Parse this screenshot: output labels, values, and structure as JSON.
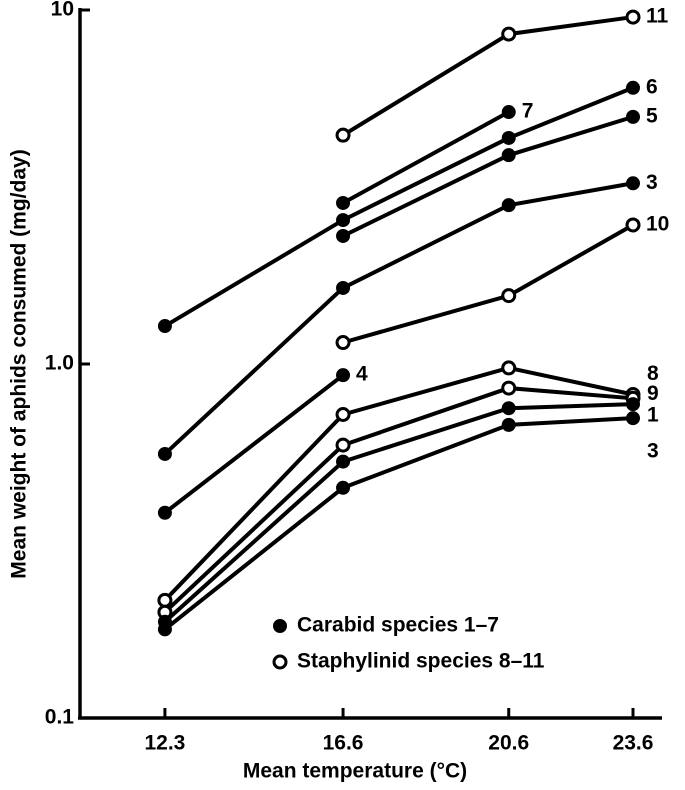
{
  "chart_data": {
    "type": "line",
    "x_label": "Mean temperature (°C)",
    "y_label": "Mean weight of aphids consumed (mg/day)",
    "x": [
      12.3,
      16.6,
      20.6,
      23.6
    ],
    "xlim": [
      10.25,
      24.3
    ],
    "xticks": [
      12.3,
      16.6,
      20.6,
      23.6
    ],
    "ylim": [
      0.1,
      10
    ],
    "yticks": [
      0.1,
      {
        "value": 1,
        "label": "1.0"
      },
      10
    ],
    "y_scale": "log",
    "color": "#000000",
    "series": [
      {
        "name": "11",
        "marker": "open",
        "values": [
          null,
          4.43,
          8.55,
          9.55
        ]
      },
      {
        "name": "7",
        "marker": "filled",
        "values": [
          null,
          2.85,
          5.15,
          null
        ]
      },
      {
        "name": "6",
        "marker": "filled",
        "values": [
          1.28,
          2.55,
          4.35,
          6.03
        ]
      },
      {
        "name": "5",
        "marker": "filled",
        "values": [
          null,
          2.3,
          3.89,
          4.99
        ]
      },
      {
        "name": "3",
        "marker": "filled",
        "values": [
          0.557,
          1.64,
          2.81,
          3.24
        ]
      },
      {
        "name": "10",
        "marker": "open",
        "values": [
          null,
          1.15,
          1.56,
          2.47
        ]
      },
      {
        "name": "4",
        "marker": "filled",
        "values": [
          0.38,
          0.93,
          null,
          null
        ]
      },
      {
        "name": "8",
        "marker": "open",
        "values": [
          0.215,
          0.72,
          0.975,
          0.82
        ]
      },
      {
        "name": "9",
        "marker": "open",
        "values": [
          0.199,
          0.59,
          0.855,
          0.8
        ]
      },
      {
        "name": "1",
        "marker": "filled",
        "values": [
          0.187,
          0.53,
          0.75,
          0.77
        ]
      },
      {
        "name": "3",
        "marker": "filled",
        "values": [
          0.178,
          0.447,
          0.673,
          0.703
        ]
      }
    ],
    "legend": [
      {
        "marker": "filled",
        "label": "Carabid species 1–7"
      },
      {
        "marker": "open",
        "label": "Staphylinid species 8–11"
      }
    ]
  }
}
